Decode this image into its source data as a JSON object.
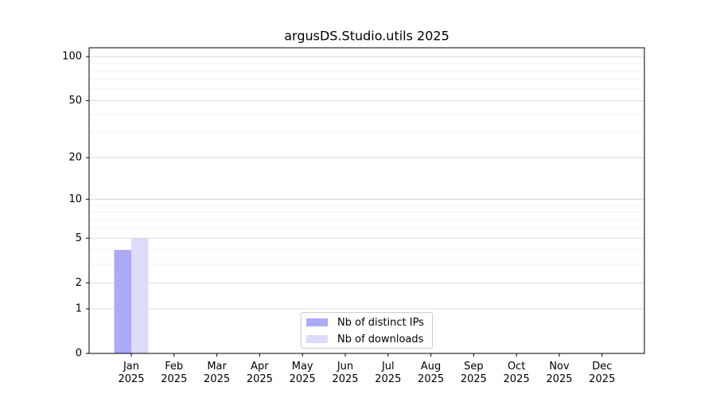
{
  "chart_data": {
    "type": "bar",
    "title": "argusDS.Studio.utils 2025",
    "categories": [
      "Jan\n2025",
      "Feb\n2025",
      "Mar\n2025",
      "Apr\n2025",
      "May\n2025",
      "Jun\n2025",
      "Jul\n2025",
      "Aug\n2025",
      "Sep\n2025",
      "Oct\n2025",
      "Nov\n2025",
      "Dec\n2025"
    ],
    "series": [
      {
        "name": "Nb of distinct IPs",
        "color": "#aaaaf5",
        "values": [
          4,
          0,
          0,
          0,
          0,
          0,
          0,
          0,
          0,
          0,
          0,
          0
        ]
      },
      {
        "name": "Nb of downloads",
        "color": "#dcdcfa",
        "values": [
          5,
          0,
          0,
          0,
          0,
          0,
          0,
          0,
          0,
          0,
          0,
          0
        ]
      }
    ],
    "yscale": "log1p",
    "ylim": [
      0,
      115
    ],
    "yticks": [
      0,
      1,
      2,
      5,
      10,
      20,
      50,
      100
    ],
    "yminor": [
      3,
      4,
      6,
      7,
      8,
      9,
      30,
      40,
      60,
      70,
      80,
      90
    ],
    "grid": true,
    "legend": "lower center"
  }
}
